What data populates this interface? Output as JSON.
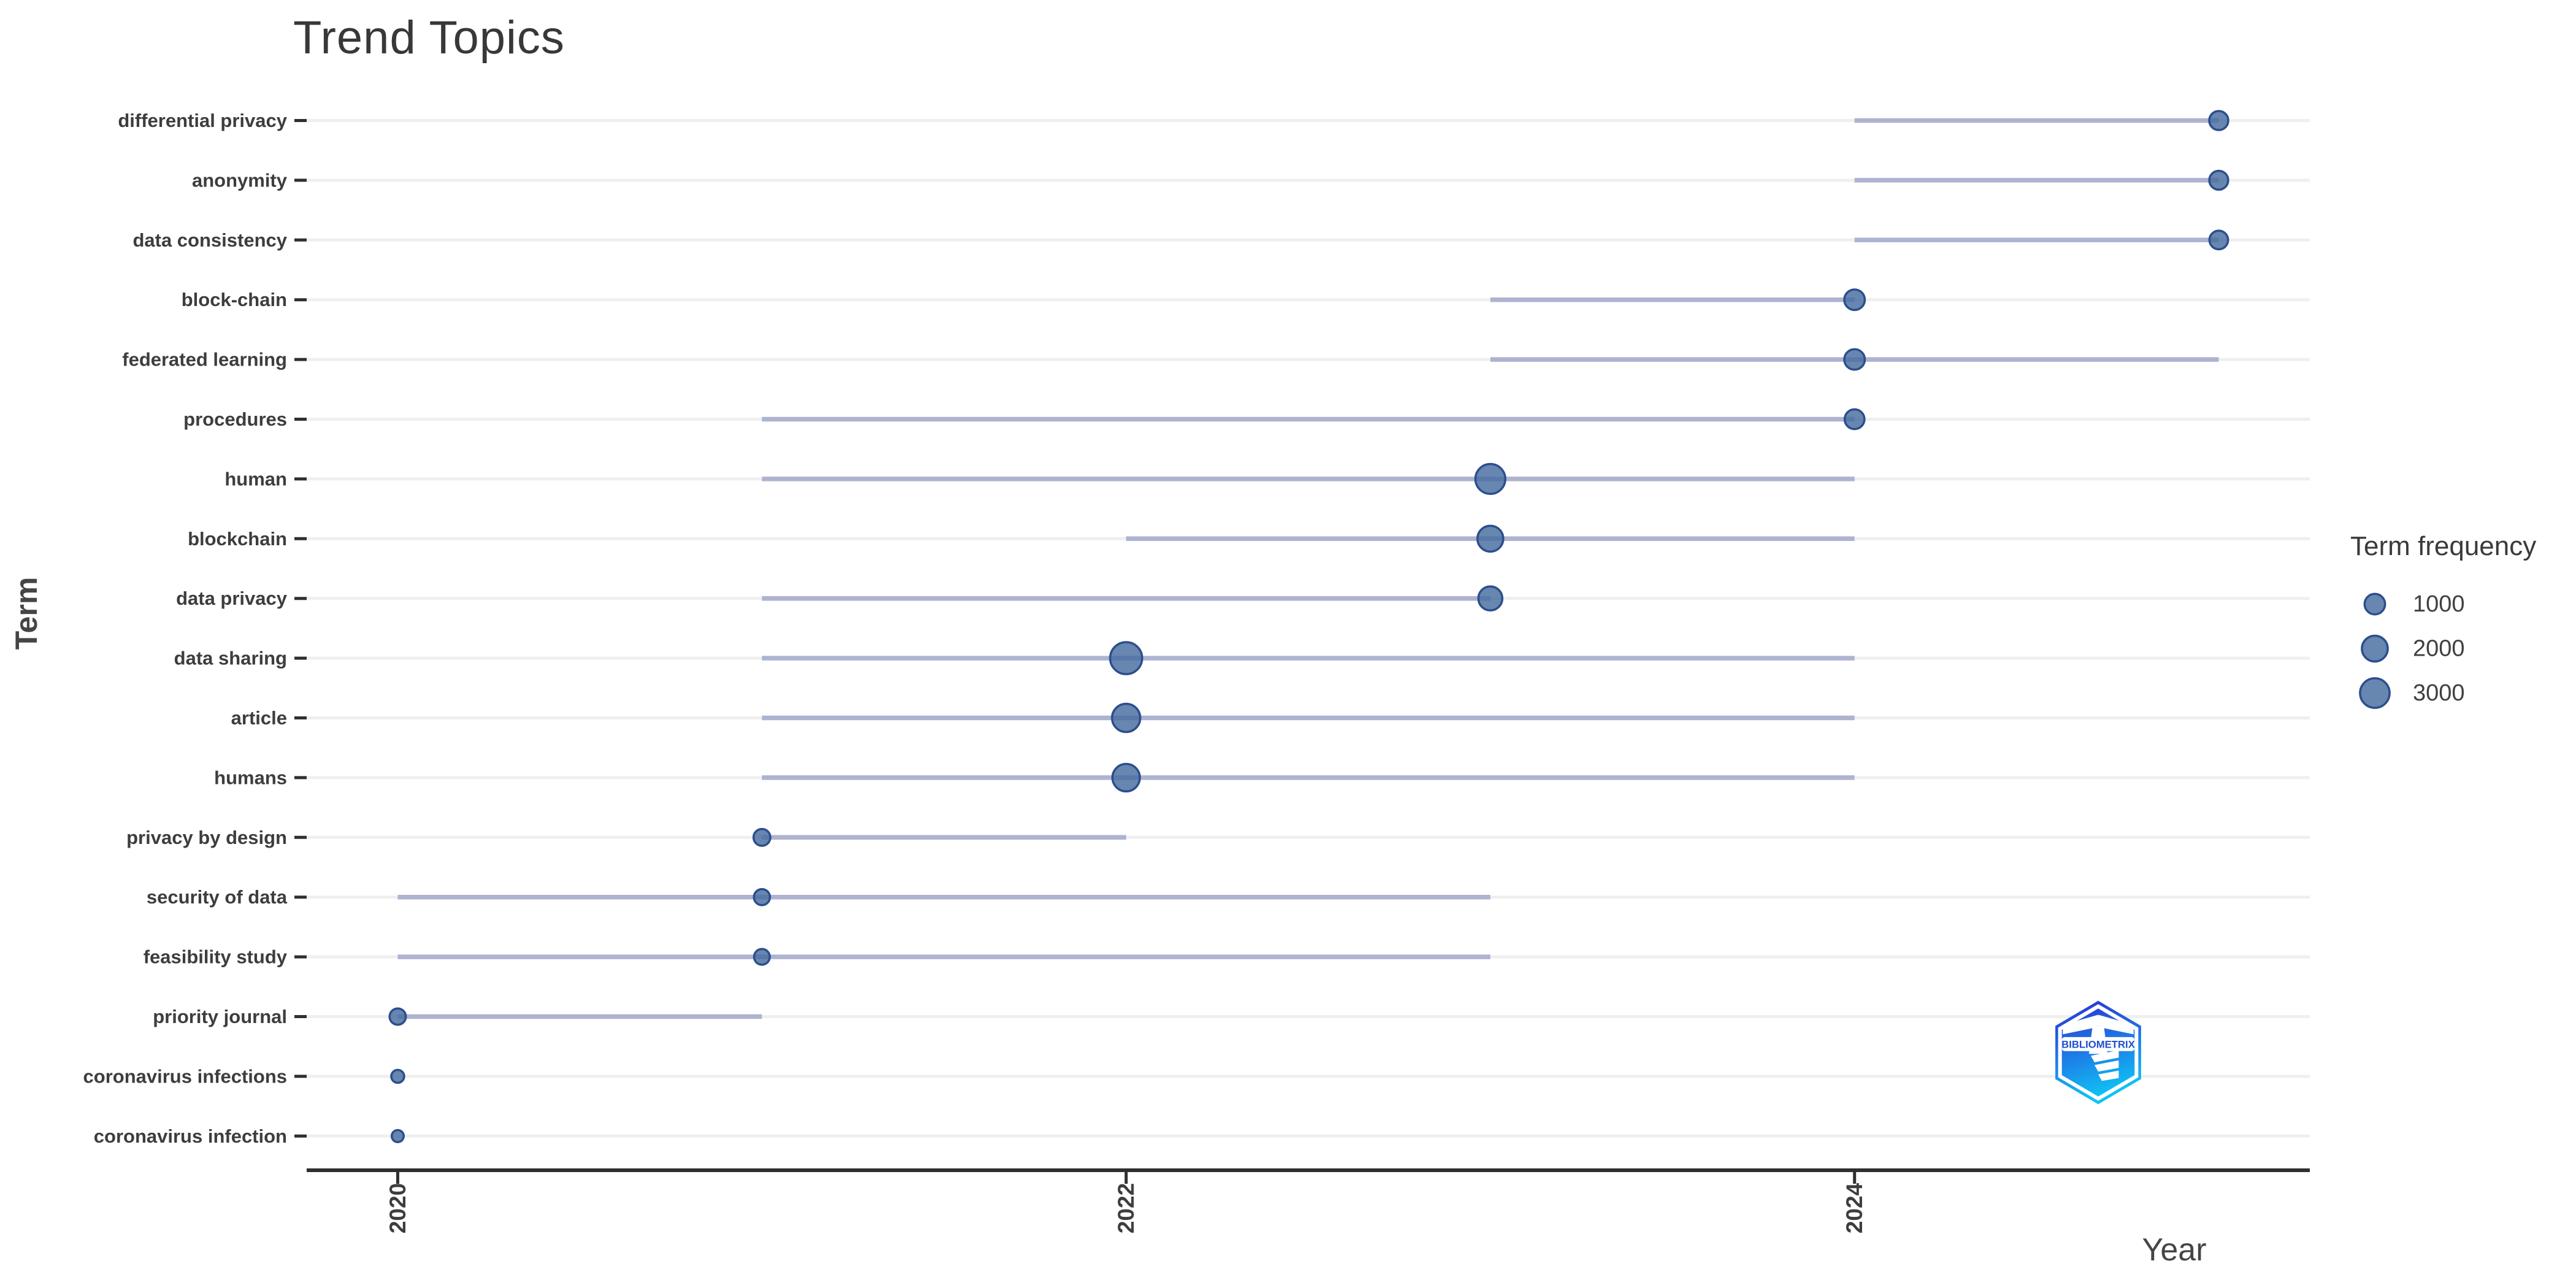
{
  "title": "Trend Topics",
  "axes": {
    "x_label": "Year",
    "y_label": "Term",
    "x_ticks": [
      "2020",
      "2022",
      "2024"
    ]
  },
  "legend": {
    "title": "Term frequency",
    "sizes": [
      1000,
      2000,
      3000
    ],
    "labels": [
      "1000",
      "2000",
      "3000"
    ]
  },
  "logo": {
    "text": "BIBLIOMETRIX"
  },
  "colors": {
    "dot_fill": "#41699E",
    "dot_stroke": "#2C4E8C",
    "trend_line": "#ADB3D0",
    "gridline": "#EFEFEF",
    "axis": "#2F2F2F",
    "tick_label": "#3D3D3D"
  },
  "chart_data": {
    "type": "scatter",
    "title": "Trend Topics",
    "xlabel": "Year",
    "ylabel": "Term",
    "xlim": [
      2019.75,
      2025.25
    ],
    "x_ticks": [
      2020,
      2022,
      2024
    ],
    "grid": "horizontal",
    "legend_position": "right",
    "legend_title": "Term frequency",
    "legend_sizes": [
      1000,
      2000,
      3000
    ],
    "terms": [
      {
        "label": "differential privacy",
        "freq": 800,
        "year_q1": 2024,
        "year_med": 2025,
        "year_q3": 2025
      },
      {
        "label": "anonymity",
        "freq": 780,
        "year_q1": 2024,
        "year_med": 2025,
        "year_q3": 2025
      },
      {
        "label": "data consistency",
        "freq": 750,
        "year_q1": 2024,
        "year_med": 2025,
        "year_q3": 2025
      },
      {
        "label": "block-chain",
        "freq": 1000,
        "year_q1": 2023,
        "year_med": 2024,
        "year_q3": 2024
      },
      {
        "label": "federated learning",
        "freq": 1000,
        "year_q1": 2023,
        "year_med": 2024,
        "year_q3": 2025
      },
      {
        "label": "procedures",
        "freq": 900,
        "year_q1": 2021,
        "year_med": 2024,
        "year_q3": 2024
      },
      {
        "label": "human",
        "freq": 3100,
        "year_q1": 2021,
        "year_med": 2023,
        "year_q3": 2024
      },
      {
        "label": "blockchain",
        "freq": 2000,
        "year_q1": 2022,
        "year_med": 2023,
        "year_q3": 2024
      },
      {
        "label": "data privacy",
        "freq": 1600,
        "year_q1": 2021,
        "year_med": 2023,
        "year_q3": 2023
      },
      {
        "label": "data sharing",
        "freq": 3800,
        "year_q1": 2021,
        "year_med": 2022,
        "year_q3": 2024
      },
      {
        "label": "article",
        "freq": 2600,
        "year_q1": 2021,
        "year_med": 2022,
        "year_q3": 2024
      },
      {
        "label": "humans",
        "freq": 2400,
        "year_q1": 2021,
        "year_med": 2022,
        "year_q3": 2024
      },
      {
        "label": "privacy by design",
        "freq": 550,
        "year_q1": 2021,
        "year_med": 2021,
        "year_q3": 2022
      },
      {
        "label": "security of data",
        "freq": 480,
        "year_q1": 2020,
        "year_med": 2021,
        "year_q3": 2023
      },
      {
        "label": "feasibility study",
        "freq": 450,
        "year_q1": 2020,
        "year_med": 2021,
        "year_q3": 2023
      },
      {
        "label": "priority journal",
        "freq": 500,
        "year_q1": 2020,
        "year_med": 2020,
        "year_q3": 2021
      },
      {
        "label": "coronavirus infections",
        "freq": 250,
        "year_q1": 2020,
        "year_med": 2020,
        "year_q3": 2020
      },
      {
        "label": "coronavirus infection",
        "freq": 200,
        "year_q1": 2020,
        "year_med": 2020,
        "year_q3": 2020
      }
    ]
  }
}
